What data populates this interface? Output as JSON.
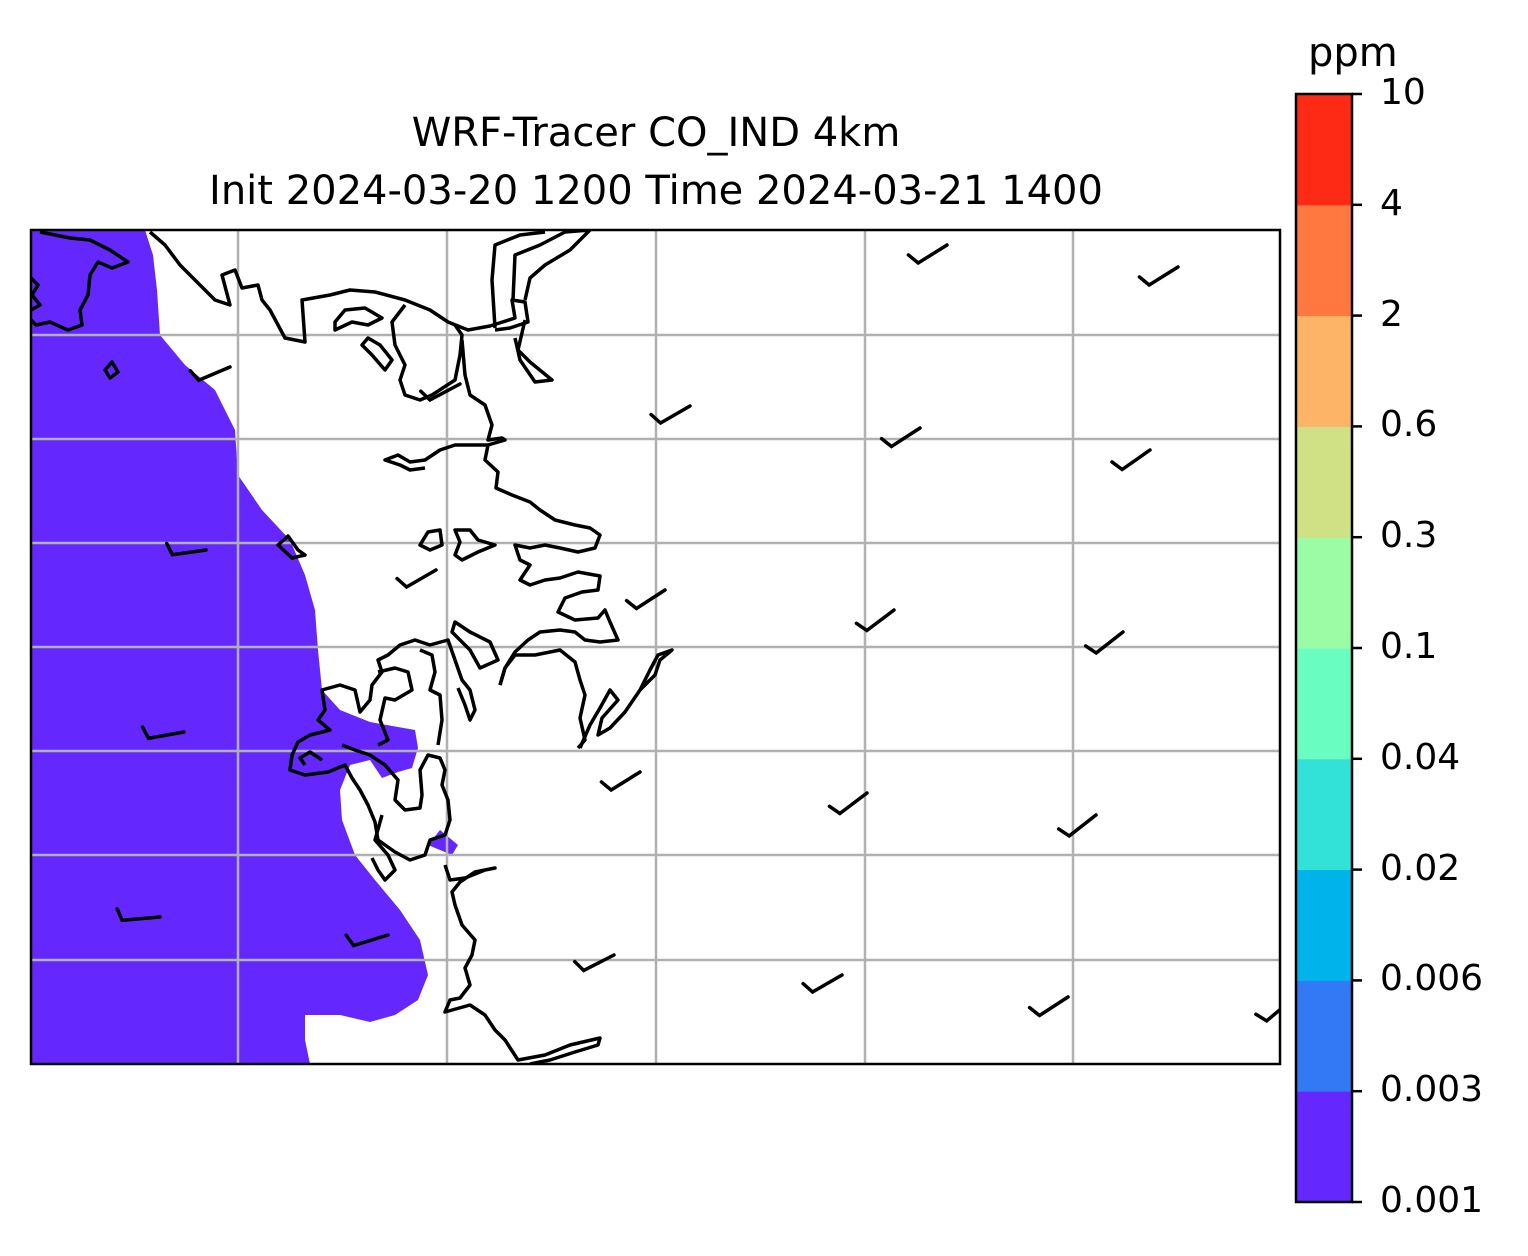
{
  "title": {
    "line1": "WRF-Tracer CO_IND 4km",
    "line2": "Init 2024-03-20 1200 Time 2024-03-21 1400"
  },
  "colorbar": {
    "unit": "ppm",
    "levels": [
      "0.001",
      "0.003",
      "0.006",
      "0.02",
      "0.04",
      "0.1",
      "0.3",
      "0.6",
      "2",
      "4",
      "10"
    ],
    "colors": [
      "#6428ff",
      "#3378f4",
      "#00b4eb",
      "#32e1d8",
      "#6afdc2",
      "#9cfca5",
      "#d0e185",
      "#fdb466",
      "#fe7840",
      "#ff2a16"
    ]
  },
  "map": {
    "field_fill_color": "#6428ff",
    "field_level": "0.001–0.003 ppm",
    "gridlines": true,
    "coastline_color": "#000000",
    "wind_barbs": true
  }
}
